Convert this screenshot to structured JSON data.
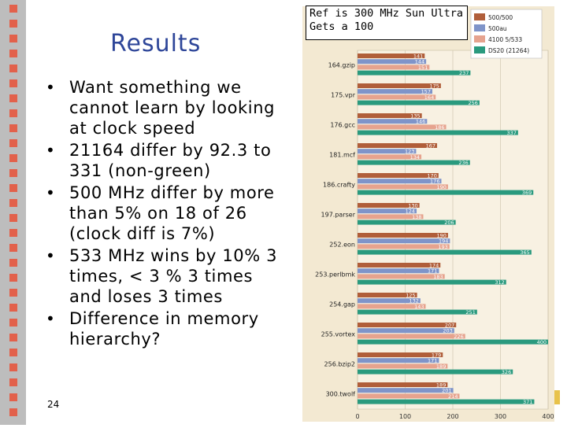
{
  "slide": {
    "title": "Results",
    "number": "24",
    "bullets": [
      "Want something we cannot learn by looking at clock speed",
      "21164 differ by 92.3 to 331 (non-green)",
      "500 MHz differ by more than 5% on 18 of 26 (clock diff is 7%)",
      "533 MHz wins by 10% 3 times, < 3 % 3 times and loses 3 times",
      "Difference in memory hierarchy?"
    ],
    "note": "Ref is 300 MHz Sun Ultra Gets a 100"
  },
  "colors": {
    "title": "#2e4699",
    "stripe_bg": "#bdbdbd",
    "stripe_square": "#e2614b",
    "chart_bg": "#f3e9d2",
    "bar_500_500": "#b05e3a",
    "bar_500au": "#7f94c9",
    "bar_4100": "#e6a38e",
    "bar_ds20": "#2a9a7e"
  },
  "chart_data": {
    "type": "bar",
    "orientation": "horizontal",
    "categories": [
      "164.gzip",
      "175.vpr",
      "176.gcc",
      "181.mcf",
      "186.crafty",
      "197.parser",
      "252.eon",
      "253.perlbmk",
      "254.gap",
      "255.vortex",
      "256.bzip2",
      "300.twolf"
    ],
    "series": [
      {
        "name": "500/500",
        "values": [
          141,
          175,
          135,
          167,
          170,
          130,
          190,
          174,
          125,
          207,
          179,
          189
        ]
      },
      {
        "name": "500au",
        "values": [
          144,
          157,
          146,
          123,
          176,
          124,
          194,
          171,
          132,
          203,
          171,
          201
        ]
      },
      {
        "name": "4100 5/533",
        "values": [
          151,
          164,
          186,
          134,
          190,
          138,
          193,
          183,
          143,
          226,
          189,
          214
        ]
      },
      {
        "name": "DS20 (21264)",
        "values": [
          237,
          256,
          337,
          236,
          369,
          206,
          365,
          312,
          251,
          400,
          326,
          371
        ]
      }
    ],
    "xlim": [
      0,
      400
    ],
    "xticks": [
      "0",
      "100",
      "200",
      "300",
      "400"
    ],
    "legend": "top-right"
  }
}
